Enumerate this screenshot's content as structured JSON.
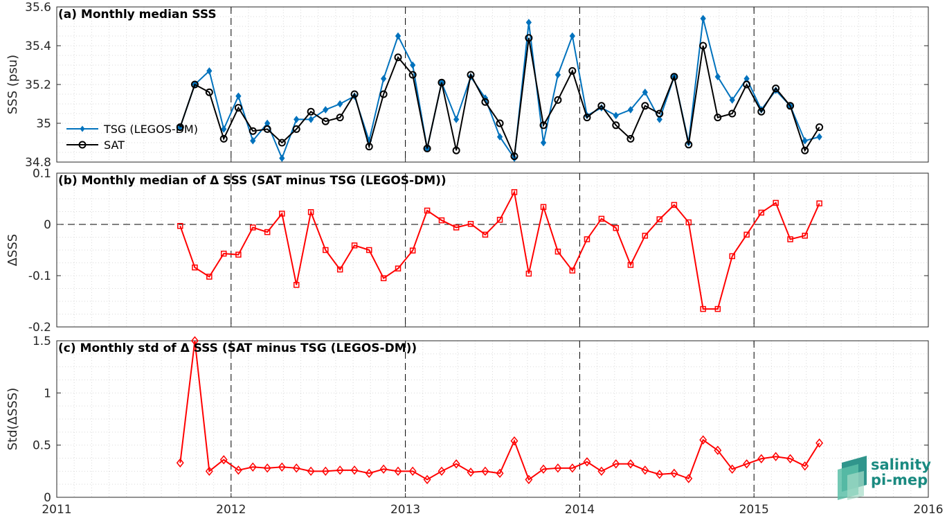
{
  "chart_data": [
    {
      "type": "line",
      "title": "(a) Monthly median SSS",
      "ylabel": "SSS (psu)",
      "xlim": [
        2011,
        2016
      ],
      "ylim": [
        34.8,
        35.6
      ],
      "yticks": [
        "34.8",
        "35",
        "35.2",
        "35.4",
        "35.6"
      ],
      "grid": "dotted",
      "legend_position": "left",
      "series": [
        {
          "name": "TSG (LEGOS-DM)",
          "color": "#0072bd",
          "marker": "diamond",
          "x": [
            2011.708,
            2011.792,
            2011.875,
            2011.958,
            2012.042,
            2012.125,
            2012.208,
            2012.292,
            2012.375,
            2012.458,
            2012.542,
            2012.625,
            2012.708,
            2012.792,
            2012.875,
            2012.958,
            2013.042,
            2013.125,
            2013.208,
            2013.292,
            2013.375,
            2013.458,
            2013.542,
            2013.625,
            2013.708,
            2013.792,
            2013.875,
            2013.958,
            2014.042,
            2014.125,
            2014.208,
            2014.292,
            2014.375,
            2014.458,
            2014.542,
            2014.625,
            2014.708,
            2014.792,
            2014.875,
            2014.958,
            2015.042,
            2015.125,
            2015.208,
            2015.292,
            2015.375
          ],
          "values": [
            34.98,
            35.2,
            35.27,
            34.97,
            35.14,
            34.91,
            35.0,
            34.82,
            35.02,
            35.02,
            35.07,
            35.1,
            35.14,
            34.91,
            35.23,
            35.45,
            35.3,
            34.87,
            35.21,
            35.02,
            35.24,
            35.13,
            34.93,
            34.82,
            35.52,
            34.9,
            35.25,
            35.45,
            35.04,
            35.08,
            35.04,
            35.07,
            35.16,
            35.02,
            35.24,
            34.9,
            35.54,
            35.24,
            35.12,
            35.23,
            35.07,
            35.17,
            35.09,
            34.91,
            34.93
          ]
        },
        {
          "name": "SAT",
          "color": "#000000",
          "marker": "circle",
          "x": [
            2011.708,
            2011.792,
            2011.875,
            2011.958,
            2012.042,
            2012.125,
            2012.208,
            2012.292,
            2012.375,
            2012.458,
            2012.542,
            2012.625,
            2012.708,
            2012.792,
            2012.875,
            2012.958,
            2013.042,
            2013.125,
            2013.208,
            2013.292,
            2013.375,
            2013.458,
            2013.542,
            2013.625,
            2013.708,
            2013.792,
            2013.875,
            2013.958,
            2014.042,
            2014.125,
            2014.208,
            2014.292,
            2014.375,
            2014.458,
            2014.542,
            2014.625,
            2014.708,
            2014.792,
            2014.875,
            2014.958,
            2015.042,
            2015.125,
            2015.208,
            2015.292,
            2015.375
          ],
          "values": [
            34.98,
            35.2,
            35.16,
            34.92,
            35.08,
            34.96,
            34.97,
            34.9,
            34.97,
            35.06,
            35.01,
            35.03,
            35.15,
            34.88,
            35.15,
            35.34,
            35.25,
            34.87,
            35.21,
            34.86,
            35.25,
            35.11,
            35.0,
            34.83,
            35.44,
            34.99,
            35.12,
            35.27,
            35.03,
            35.09,
            34.99,
            34.92,
            35.09,
            35.05,
            35.24,
            34.89,
            35.4,
            35.03,
            35.05,
            35.2,
            35.06,
            35.18,
            35.09,
            34.86,
            34.98
          ]
        }
      ]
    },
    {
      "type": "line",
      "title": "(b) Monthly median of Δ SSS (SAT minus TSG (LEGOS-DM))",
      "ylabel": "ΔSSS",
      "xlim": [
        2011,
        2016
      ],
      "ylim": [
        -0.2,
        0.1
      ],
      "yticks": [
        "-0.2",
        "-0.1",
        "0",
        "0.1"
      ],
      "reference_line": 0,
      "grid": "dotted",
      "series": [
        {
          "color": "#ff0000",
          "marker": "square",
          "x": [
            2011.708,
            2011.792,
            2011.875,
            2011.958,
            2012.042,
            2012.125,
            2012.208,
            2012.292,
            2012.375,
            2012.458,
            2012.542,
            2012.625,
            2012.708,
            2012.792,
            2012.875,
            2012.958,
            2013.042,
            2013.125,
            2013.208,
            2013.292,
            2013.375,
            2013.458,
            2013.542,
            2013.625,
            2013.708,
            2013.792,
            2013.875,
            2013.958,
            2014.042,
            2014.125,
            2014.208,
            2014.292,
            2014.375,
            2014.458,
            2014.542,
            2014.625,
            2014.708,
            2014.792,
            2014.875,
            2014.958,
            2015.042,
            2015.125,
            2015.208,
            2015.292,
            2015.375
          ],
          "values": [
            -0.003,
            -0.084,
            -0.102,
            -0.057,
            -0.059,
            -0.006,
            -0.015,
            0.021,
            -0.118,
            0.024,
            -0.05,
            -0.088,
            -0.041,
            -0.05,
            -0.105,
            -0.086,
            -0.051,
            0.027,
            0.008,
            -0.006,
            0.001,
            -0.02,
            0.009,
            0.063,
            -0.096,
            0.034,
            -0.053,
            -0.09,
            -0.029,
            0.011,
            -0.007,
            -0.079,
            -0.022,
            0.01,
            0.038,
            0.004,
            -0.165,
            -0.165,
            -0.062,
            -0.02,
            0.023,
            0.042,
            -0.029,
            -0.022,
            0.041
          ]
        }
      ]
    },
    {
      "type": "line",
      "title": "(c) Monthly std of Δ SSS (SAT minus TSG (LEGOS-DM))",
      "ylabel": "Std(ΔSSS)",
      "xlim": [
        2011,
        2016
      ],
      "ylim": [
        0,
        1.5
      ],
      "yticks": [
        "0",
        "0.5",
        "1",
        "1.5"
      ],
      "xticks": [
        "2011",
        "2012",
        "2013",
        "2014",
        "2015",
        "2016"
      ],
      "grid": "dotted",
      "series": [
        {
          "color": "#ff0000",
          "marker": "diamond",
          "x": [
            2011.708,
            2011.792,
            2011.875,
            2011.958,
            2012.042,
            2012.125,
            2012.208,
            2012.292,
            2012.375,
            2012.458,
            2012.542,
            2012.625,
            2012.708,
            2012.792,
            2012.875,
            2012.958,
            2013.042,
            2013.125,
            2013.208,
            2013.292,
            2013.375,
            2013.458,
            2013.542,
            2013.625,
            2013.708,
            2013.792,
            2013.875,
            2013.958,
            2014.042,
            2014.125,
            2014.208,
            2014.292,
            2014.375,
            2014.458,
            2014.542,
            2014.625,
            2014.708,
            2014.792,
            2014.875,
            2014.958,
            2015.042,
            2015.125,
            2015.208,
            2015.292,
            2015.375
          ],
          "values": [
            0.33,
            1.5,
            0.25,
            0.36,
            0.26,
            0.29,
            0.28,
            0.29,
            0.28,
            0.25,
            0.25,
            0.26,
            0.26,
            0.23,
            0.27,
            0.25,
            0.25,
            0.17,
            0.25,
            0.32,
            0.24,
            0.25,
            0.23,
            0.54,
            0.17,
            0.27,
            0.28,
            0.28,
            0.34,
            0.25,
            0.32,
            0.32,
            0.26,
            0.22,
            0.23,
            0.18,
            0.55,
            0.45,
            0.27,
            0.32,
            0.37,
            0.39,
            0.37,
            0.3,
            0.52
          ]
        }
      ]
    }
  ],
  "logo": {
    "line1": "salinity",
    "line2": "pi-mep",
    "color": "#1a8a80"
  }
}
